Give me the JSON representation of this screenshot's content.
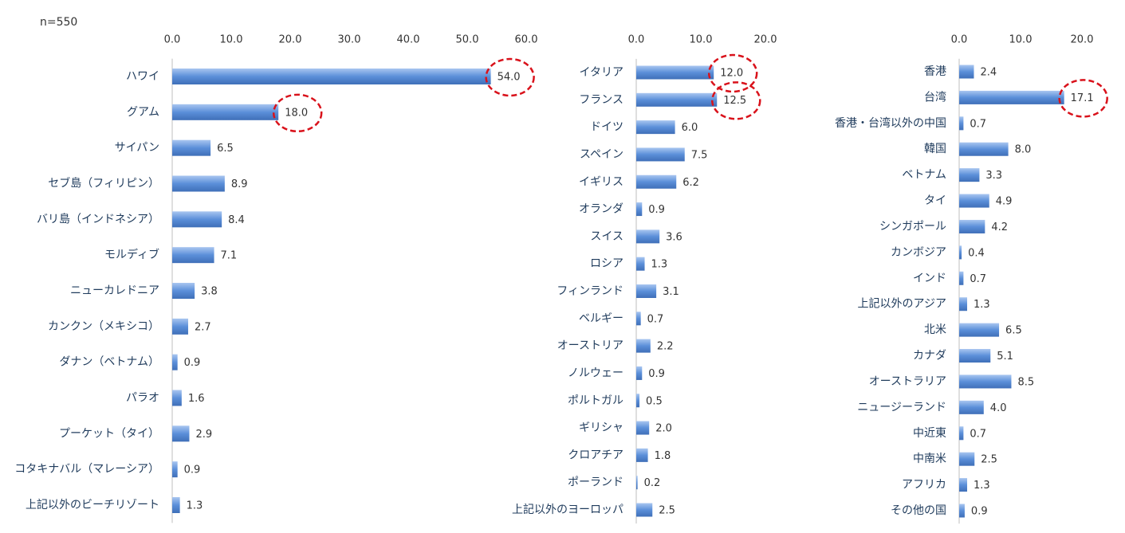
{
  "note": "n=550",
  "chart_data": [
    {
      "type": "bar",
      "orientation": "horizontal",
      "color": "#5b8fd9",
      "categories": [
        "ハワイ",
        "グアム",
        "サイパン",
        "セブ島（フィリピン）",
        "バリ島（インドネシア）",
        "モルディブ",
        "ニューカレドニア",
        "カンクン（メキシコ）",
        "ダナン（ベトナム）",
        "パラオ",
        "プーケット（タイ）",
        "コタキナバル（マレーシア）",
        "上記以外のビーチリゾート"
      ],
      "values": [
        54,
        18,
        6.5,
        8.9,
        8.4,
        7.1,
        3.8,
        2.7,
        0.9,
        1.6,
        2.9,
        0.9,
        1.3
      ],
      "value_labels": [
        "54.0",
        "18.0",
        "6.5",
        "8.9",
        "8.4",
        "7.1",
        "3.8",
        "2.7",
        "0.9",
        "1.6",
        "2.9",
        "0.9",
        "1.3"
      ],
      "xlim": [
        0,
        60
      ],
      "xticks": [
        {
          "value": 0,
          "label": "0.0"
        },
        {
          "value": 10,
          "label": "10.0"
        },
        {
          "value": 20,
          "label": "20.0"
        },
        {
          "value": 30,
          "label": "30.0"
        },
        {
          "value": 40,
          "label": "40.0"
        },
        {
          "value": 50,
          "label": "50.0"
        },
        {
          "value": 60,
          "label": "60.0"
        }
      ],
      "highlighted": [
        0,
        1
      ]
    },
    {
      "type": "bar",
      "orientation": "horizontal",
      "color": "#5b8fd9",
      "categories": [
        "イタリア",
        "フランス",
        "ドイツ",
        "スペイン",
        "イギリス",
        "オランダ",
        "スイス",
        "ロシア",
        "フィンランド",
        "ベルギー",
        "オーストリア",
        "ノルウェー",
        "ポルトガル",
        "ギリシャ",
        "クロアチア",
        "ポーランド",
        "上記以外のヨーロッパ"
      ],
      "values": [
        12,
        12.5,
        6,
        7.5,
        6.2,
        0.9,
        3.6,
        1.3,
        3.1,
        0.7,
        2.2,
        0.9,
        0.5,
        2,
        1.8,
        0.2,
        2.5
      ],
      "value_labels": [
        "12.0",
        "12.5",
        "6.0",
        "7.5",
        "6.2",
        "0.9",
        "3.6",
        "1.3",
        "3.1",
        "0.7",
        "2.2",
        "0.9",
        "0.5",
        "2.0",
        "1.8",
        "0.2",
        "2.5"
      ],
      "xlim": [
        0,
        20
      ],
      "xticks": [
        {
          "value": 0,
          "label": "0.0"
        },
        {
          "value": 10,
          "label": "10.0"
        },
        {
          "value": 20,
          "label": "20.0"
        }
      ],
      "highlighted": [
        0,
        1
      ]
    },
    {
      "type": "bar",
      "orientation": "horizontal",
      "color": "#5b8fd9",
      "categories": [
        "香港",
        "台湾",
        "香港・台湾以外の中国",
        "韓国",
        "ベトナム",
        "タイ",
        "シンガポール",
        "カンボジア",
        "インド",
        "上記以外のアジア",
        "北米",
        "カナダ",
        "オーストラリア",
        "ニュージーランド",
        "中近東",
        "中南米",
        "アフリカ",
        "その他の国"
      ],
      "values": [
        2.4,
        17.1,
        0.7,
        8,
        3.3,
        4.9,
        4.2,
        0.4,
        0.7,
        1.3,
        6.5,
        5.1,
        8.5,
        4,
        0.7,
        2.5,
        1.3,
        0.9
      ],
      "value_labels": [
        "2.4",
        "17.1",
        "0.7",
        "8.0",
        "3.3",
        "4.9",
        "4.2",
        "0.4",
        "0.7",
        "1.3",
        "6.5",
        "5.1",
        "8.5",
        "4.0",
        "0.7",
        "2.5",
        "1.3",
        "0.9"
      ],
      "xlim": [
        0,
        20
      ],
      "xticks": [
        {
          "value": 0,
          "label": "0.0"
        },
        {
          "value": 10,
          "label": "10.0"
        },
        {
          "value": 20,
          "label": "20.0"
        }
      ],
      "highlighted": [
        1
      ]
    }
  ]
}
